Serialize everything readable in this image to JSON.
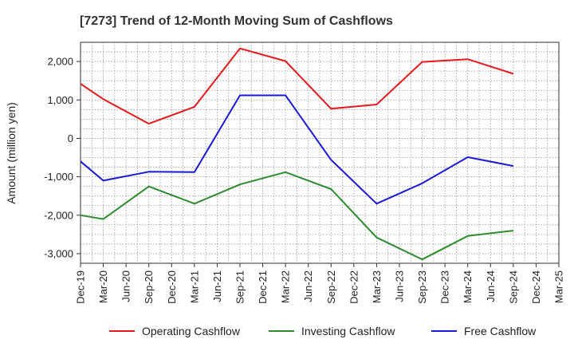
{
  "chart_data": {
    "type": "line",
    "title": "[7273]  Trend of 12-Month Moving Sum of Cashflows",
    "xlabel": "",
    "ylabel": "Amount (million yen)",
    "categories": [
      "Dec-19",
      "Mar-20",
      "Jun-20",
      "Sep-20",
      "Dec-20",
      "Mar-21",
      "Jun-21",
      "Sep-21",
      "Dec-21",
      "Mar-22",
      "Jun-22",
      "Sep-22",
      "Dec-22",
      "Mar-23",
      "Jun-23",
      "Sep-23",
      "Dec-23",
      "Mar-24",
      "Jun-24",
      "Sep-24",
      "Dec-24",
      "Mar-25"
    ],
    "ylim": [
      -3250,
      2500
    ],
    "yticks": [
      2000,
      1000,
      0,
      -1000,
      -2000,
      -3000
    ],
    "ytick_labels": [
      "2,000",
      "1,000",
      "0",
      "-1,000",
      "-2,000",
      "-3,000"
    ],
    "grid": true,
    "legend_position": "bottom",
    "series": [
      {
        "name": "Operating Cashflow",
        "color": "#e41a1c",
        "values": [
          1420,
          1020,
          null,
          380,
          null,
          820,
          null,
          2340,
          null,
          2010,
          null,
          770,
          null,
          880,
          null,
          1990,
          null,
          2060,
          null,
          1680,
          null,
          null
        ]
      },
      {
        "name": "Investing Cashflow",
        "color": "#2e8b2e",
        "values": [
          -2000,
          -2100,
          null,
          -1250,
          null,
          -1700,
          null,
          -1200,
          null,
          -880,
          null,
          -1320,
          null,
          -2580,
          null,
          -3150,
          null,
          -2540,
          null,
          -2400,
          null,
          null
        ]
      },
      {
        "name": "Free Cashflow",
        "color": "#1a1ad6",
        "values": [
          -600,
          -1100,
          null,
          -870,
          null,
          -880,
          null,
          1120,
          null,
          1120,
          null,
          -560,
          null,
          -1700,
          null,
          -1170,
          null,
          -490,
          null,
          -720,
          null,
          null
        ]
      }
    ]
  }
}
